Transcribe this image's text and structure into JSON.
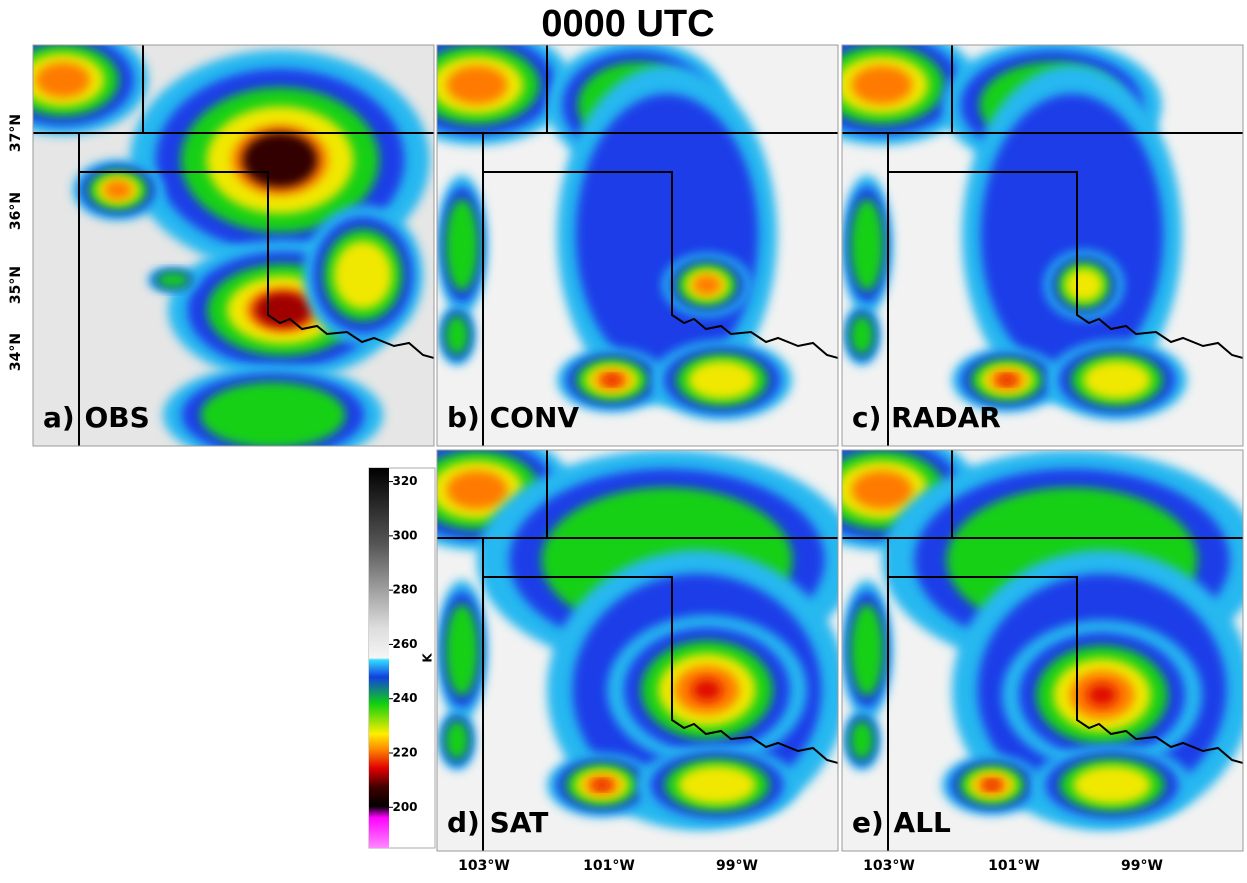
{
  "title": "0000 UTC",
  "panels": [
    {
      "label": "a) OBS"
    },
    {
      "label": "b) CONV"
    },
    {
      "label": "c) RADAR"
    },
    {
      "label": "d) SAT"
    },
    {
      "label": "e) ALL"
    }
  ],
  "lat_ticks": [
    "37°N",
    "36°N",
    "35°N",
    "34°N"
  ],
  "lon_ticks": [
    "103°W",
    "101°W",
    "99°W"
  ],
  "colorbar": {
    "unit": "K",
    "lim": [
      185,
      325
    ],
    "ticks": [
      200,
      220,
      240,
      260,
      280,
      300,
      320
    ]
  }
}
